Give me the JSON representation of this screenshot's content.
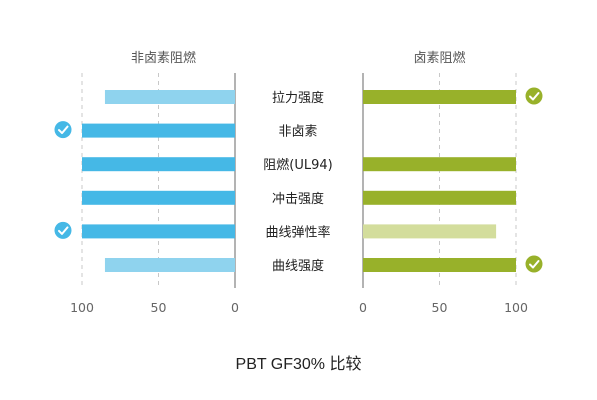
{
  "chart_data": {
    "type": "bar",
    "title": "PBT GF30% 比较",
    "categories": [
      "拉力强度",
      "非卤素",
      "阻燃(UL94)",
      "冲击强度",
      "曲线弹性率",
      "曲线强度"
    ],
    "series": [
      {
        "name": "非卤素阻燃",
        "values": [
          85,
          100,
          100,
          100,
          100,
          85
        ],
        "checked": [
          false,
          true,
          false,
          false,
          true,
          false
        ],
        "colors": [
          "#8fd3ee",
          "#45b8e6",
          "#45b8e6",
          "#45b8e6",
          "#45b8e6",
          "#8fd3ee"
        ]
      },
      {
        "name": "卤素阻燃",
        "values": [
          100,
          0,
          100,
          100,
          87,
          100
        ],
        "checked": [
          true,
          false,
          false,
          false,
          false,
          true
        ],
        "colors": [
          "#98b12a",
          "#98b12a",
          "#98b12a",
          "#98b12a",
          "#d3dd9c",
          "#98b12a"
        ]
      }
    ],
    "left_axis": {
      "ticks": [
        100,
        50,
        0
      ],
      "range": [
        100,
        0
      ]
    },
    "right_axis": {
      "ticks": [
        0,
        50,
        100
      ],
      "range": [
        0,
        100
      ]
    },
    "grid": true
  }
}
